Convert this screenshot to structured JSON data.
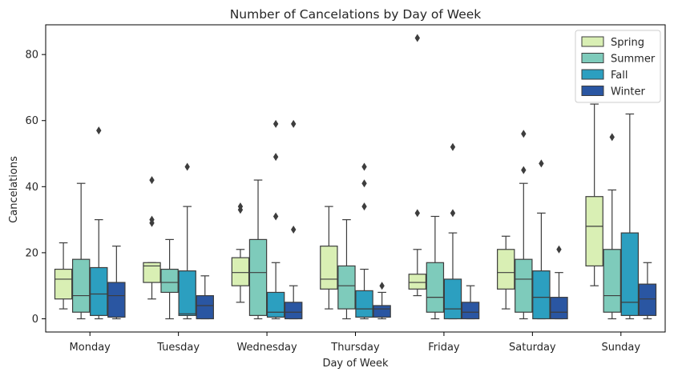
{
  "chart_data": {
    "type": "boxplot",
    "title": "Number of Cancelations by Day of Week",
    "xlabel": "Day of Week",
    "ylabel": "Cancelations",
    "ylim": [
      -4,
      89
    ],
    "yticks": [
      0,
      20,
      40,
      60,
      80
    ],
    "categories": [
      "Monday",
      "Tuesday",
      "Wednesday",
      "Thursday",
      "Friday",
      "Saturday",
      "Sunday"
    ],
    "legend_position": "top-right",
    "series": [
      {
        "name": "Spring",
        "color": "#d9efb4",
        "boxes": [
          {
            "whislo": 3,
            "q1": 6,
            "med": 12,
            "q3": 15,
            "whishi": 23,
            "fliers": []
          },
          {
            "whislo": 6,
            "q1": 11,
            "med": 16,
            "q3": 17,
            "whishi": 17,
            "fliers": [
              29,
              30,
              42
            ]
          },
          {
            "whislo": 5,
            "q1": 10,
            "med": 14,
            "q3": 18.5,
            "whishi": 21,
            "fliers": [
              33,
              34
            ]
          },
          {
            "whislo": 3,
            "q1": 9,
            "med": 12,
            "q3": 22,
            "whishi": 34,
            "fliers": []
          },
          {
            "whislo": 7,
            "q1": 9,
            "med": 11,
            "q3": 13.5,
            "whishi": 21,
            "fliers": [
              32,
              85
            ]
          },
          {
            "whislo": 3,
            "q1": 9,
            "med": 14,
            "q3": 21,
            "whishi": 25,
            "fliers": []
          },
          {
            "whislo": 10,
            "q1": 16,
            "med": 28,
            "q3": 37,
            "whishi": 65,
            "fliers": []
          }
        ]
      },
      {
        "name": "Summer",
        "color": "#7ecbbb",
        "boxes": [
          {
            "whislo": 0,
            "q1": 2,
            "med": 7,
            "q3": 18,
            "whishi": 41,
            "fliers": []
          },
          {
            "whislo": 0,
            "q1": 8,
            "med": 11,
            "q3": 15,
            "whishi": 24,
            "fliers": []
          },
          {
            "whislo": 0,
            "q1": 1,
            "med": 14,
            "q3": 24,
            "whishi": 42,
            "fliers": []
          },
          {
            "whislo": 0,
            "q1": 3,
            "med": 10,
            "q3": 16,
            "whishi": 30,
            "fliers": []
          },
          {
            "whislo": 0,
            "q1": 2,
            "med": 6.5,
            "q3": 17,
            "whishi": 31,
            "fliers": []
          },
          {
            "whislo": 0,
            "q1": 2,
            "med": 12,
            "q3": 18,
            "whishi": 41,
            "fliers": [
              45,
              56
            ]
          },
          {
            "whislo": 0,
            "q1": 2,
            "med": 7,
            "q3": 21,
            "whishi": 39,
            "fliers": [
              55
            ]
          }
        ]
      },
      {
        "name": "Fall",
        "color": "#2c9fc0",
        "boxes": [
          {
            "whislo": 0,
            "q1": 1,
            "med": 7.5,
            "q3": 15.5,
            "whishi": 30,
            "fliers": [
              57
            ]
          },
          {
            "whislo": 0,
            "q1": 1,
            "med": 1.5,
            "q3": 14.5,
            "whishi": 34,
            "fliers": [
              46
            ]
          },
          {
            "whislo": 0,
            "q1": 0.5,
            "med": 2,
            "q3": 8,
            "whishi": 17,
            "fliers": [
              31,
              49,
              59
            ]
          },
          {
            "whislo": 0,
            "q1": 0.5,
            "med": 3,
            "q3": 8.5,
            "whishi": 15,
            "fliers": [
              34,
              41,
              46
            ]
          },
          {
            "whislo": 0,
            "q1": 0,
            "med": 3,
            "q3": 12,
            "whishi": 26,
            "fliers": [
              32,
              52
            ]
          },
          {
            "whislo": 0,
            "q1": 0,
            "med": 6.5,
            "q3": 14.5,
            "whishi": 32,
            "fliers": [
              47
            ]
          },
          {
            "whislo": 0,
            "q1": 1,
            "med": 5,
            "q3": 26,
            "whishi": 62,
            "fliers": []
          }
        ]
      },
      {
        "name": "Winter",
        "color": "#2a56a2",
        "boxes": [
          {
            "whislo": 0,
            "q1": 0.5,
            "med": 7,
            "q3": 11,
            "whishi": 22,
            "fliers": []
          },
          {
            "whislo": 0,
            "q1": 0,
            "med": 4,
            "q3": 7,
            "whishi": 13,
            "fliers": []
          },
          {
            "whislo": 0,
            "q1": 0,
            "med": 2,
            "q3": 5,
            "whishi": 10,
            "fliers": [
              27,
              59
            ]
          },
          {
            "whislo": 0,
            "q1": 0.5,
            "med": 3,
            "q3": 4,
            "whishi": 8,
            "fliers": [
              10
            ]
          },
          {
            "whislo": 0,
            "q1": 0,
            "med": 2,
            "q3": 5,
            "whishi": 10,
            "fliers": []
          },
          {
            "whislo": 0,
            "q1": 0,
            "med": 2,
            "q3": 6.5,
            "whishi": 14,
            "fliers": [
              21
            ]
          },
          {
            "whislo": 0,
            "q1": 1,
            "med": 6,
            "q3": 10.5,
            "whishi": 17,
            "fliers": []
          }
        ]
      }
    ]
  }
}
